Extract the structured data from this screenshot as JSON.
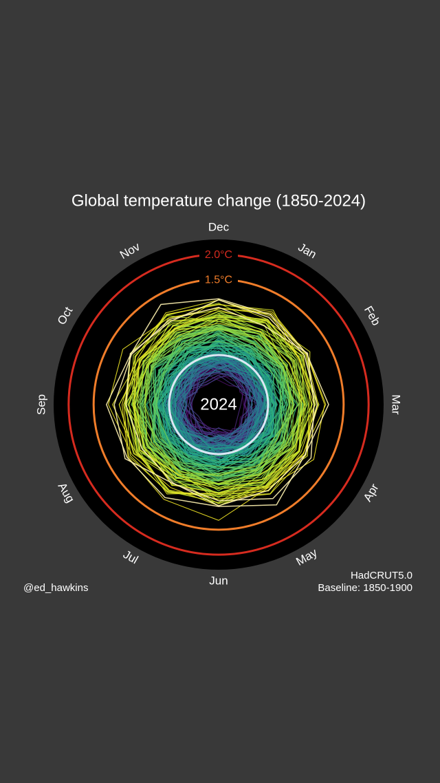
{
  "chart_data": {
    "type": "polar-line",
    "title": "Global temperature change (1850-2024)",
    "categories": [
      "Jan",
      "Feb",
      "Mar",
      "Apr",
      "May",
      "Jun",
      "Jul",
      "Aug",
      "Sep",
      "Oct",
      "Nov",
      "Dec"
    ],
    "year_label": "2024",
    "rlim": [
      -1,
      2.3
    ],
    "rticks": [
      {
        "value": 1.5,
        "label": "1.5°C",
        "color": "#f07d2a"
      },
      {
        "value": 2.0,
        "label": "2.0°C",
        "color": "#d62b1f"
      }
    ],
    "source": "HadCRUT5.0",
    "baseline": "Baseline: 1850-1900",
    "credit": "@ed_hawkins"
  }
}
